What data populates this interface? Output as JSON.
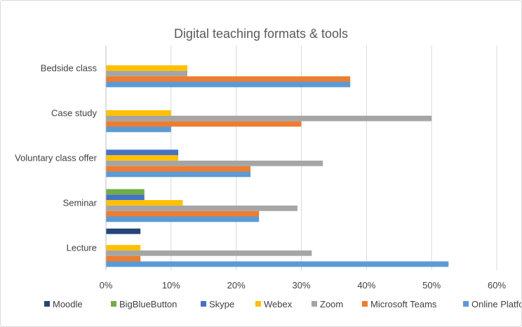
{
  "chart_data": {
    "type": "bar",
    "orientation": "horizontal",
    "title": "Digital teaching formats & tools",
    "xlabel": "",
    "ylabel": "",
    "categories": [
      "Bedside class",
      "Case study",
      "Voluntary class offer",
      "Seminar",
      "Lecture"
    ],
    "xlim": [
      0,
      60
    ],
    "x_ticks": [
      0,
      10,
      20,
      30,
      40,
      50,
      60
    ],
    "x_tick_labels": [
      "0%",
      "10%",
      "20%",
      "30%",
      "40%",
      "50%",
      "60%"
    ],
    "grid": true,
    "legend_position": "bottom",
    "series": [
      {
        "name": "Moodle",
        "color": "#264478",
        "values": [
          0,
          0,
          0,
          0,
          5.3
        ]
      },
      {
        "name": "BigBlueButton",
        "color": "#70AD47",
        "values": [
          0,
          0,
          0,
          5.9,
          0
        ]
      },
      {
        "name": "Skype",
        "color": "#4472C4",
        "values": [
          0,
          0,
          11.1,
          5.9,
          0
        ]
      },
      {
        "name": "Webex",
        "color": "#FFC000",
        "values": [
          12.5,
          10,
          11.1,
          11.8,
          5.3
        ]
      },
      {
        "name": "Zoom",
        "color": "#A5A5A5",
        "values": [
          12.5,
          50,
          33.3,
          29.4,
          31.6
        ]
      },
      {
        "name": "Microsoft Teams",
        "color": "#ED7D31",
        "values": [
          37.5,
          30,
          22.2,
          23.5,
          5.3
        ]
      },
      {
        "name": "Online Platform",
        "color": "#5B9BD5",
        "values": [
          37.5,
          10,
          22.2,
          23.5,
          52.6
        ]
      }
    ]
  }
}
